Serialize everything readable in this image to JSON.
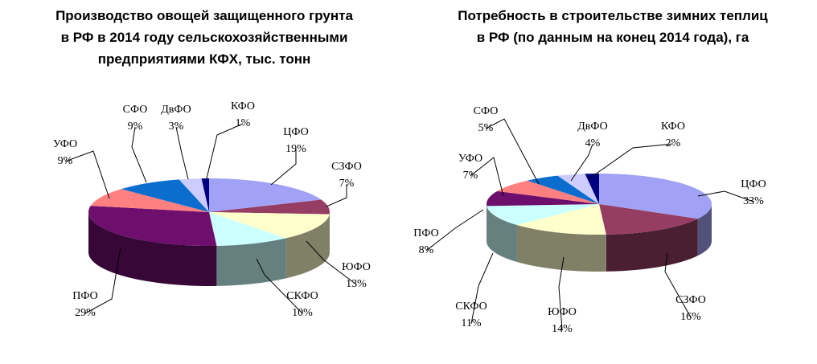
{
  "chart_data": [
    {
      "type": "pie",
      "title_lines": [
        "Производство овощей защищенного грунта",
        "в РФ в 2014 году сельскохозяйственными",
        "предприятиями КФХ, тыс. тонн"
      ],
      "legend": "none",
      "slices": [
        {
          "label": "ЦФО",
          "value_label": "19%",
          "value": 19,
          "color": "#A1A1F5"
        },
        {
          "label": "СЗФО",
          "value_label": "7%",
          "value": 7,
          "color": "#963D63"
        },
        {
          "label": "ЮФО",
          "value_label": "13%",
          "value": 13,
          "color": "#FFFFCC"
        },
        {
          "label": "СКФО",
          "value_label": "10%",
          "value": 10,
          "color": "#CCFFFF"
        },
        {
          "label": "ПФО",
          "value_label": "29%",
          "value": 29,
          "color": "#6E0F6E"
        },
        {
          "label": "УФО",
          "value_label": "9%",
          "value": 9,
          "color": "#FF8080"
        },
        {
          "label": "СФО",
          "value_label": "9%",
          "value": 9,
          "color": "#0B6ECF"
        },
        {
          "label": "ДвФО",
          "value_label": "3%",
          "value": 3,
          "color": "#CCCCFF"
        },
        {
          "label": "КФО",
          "value_label": "1%",
          "value": 1,
          "color": "#000080"
        }
      ]
    },
    {
      "type": "pie",
      "title_lines": [
        "Потребность в строительстве зимних теплиц",
        "в РФ (по данным на конец 2014 года), га"
      ],
      "legend": "none",
      "slices": [
        {
          "label": "ЦФО",
          "value_label": "33%",
          "value": 33,
          "color": "#A1A1F5"
        },
        {
          "label": "СЗФО",
          "value_label": "16%",
          "value": 16,
          "color": "#963D63"
        },
        {
          "label": "ЮФО",
          "value_label": "14%",
          "value": 14,
          "color": "#FFFFCC"
        },
        {
          "label": "СКФО",
          "value_label": "11%",
          "value": 11,
          "color": "#CCFFFF"
        },
        {
          "label": "ПФО",
          "value_label": "8%",
          "value": 8,
          "color": "#6E0F6E"
        },
        {
          "label": "УФО",
          "value_label": "7%",
          "value": 7,
          "color": "#FF8080"
        },
        {
          "label": "СФО",
          "value_label": "5%",
          "value": 5,
          "color": "#0B6ECF"
        },
        {
          "label": "ДвФО",
          "value_label": "4%",
          "value": 4,
          "color": "#CCCCFF"
        },
        {
          "label": "КФО",
          "value_label": "2%",
          "value": 2,
          "color": "#000080"
        }
      ]
    }
  ]
}
